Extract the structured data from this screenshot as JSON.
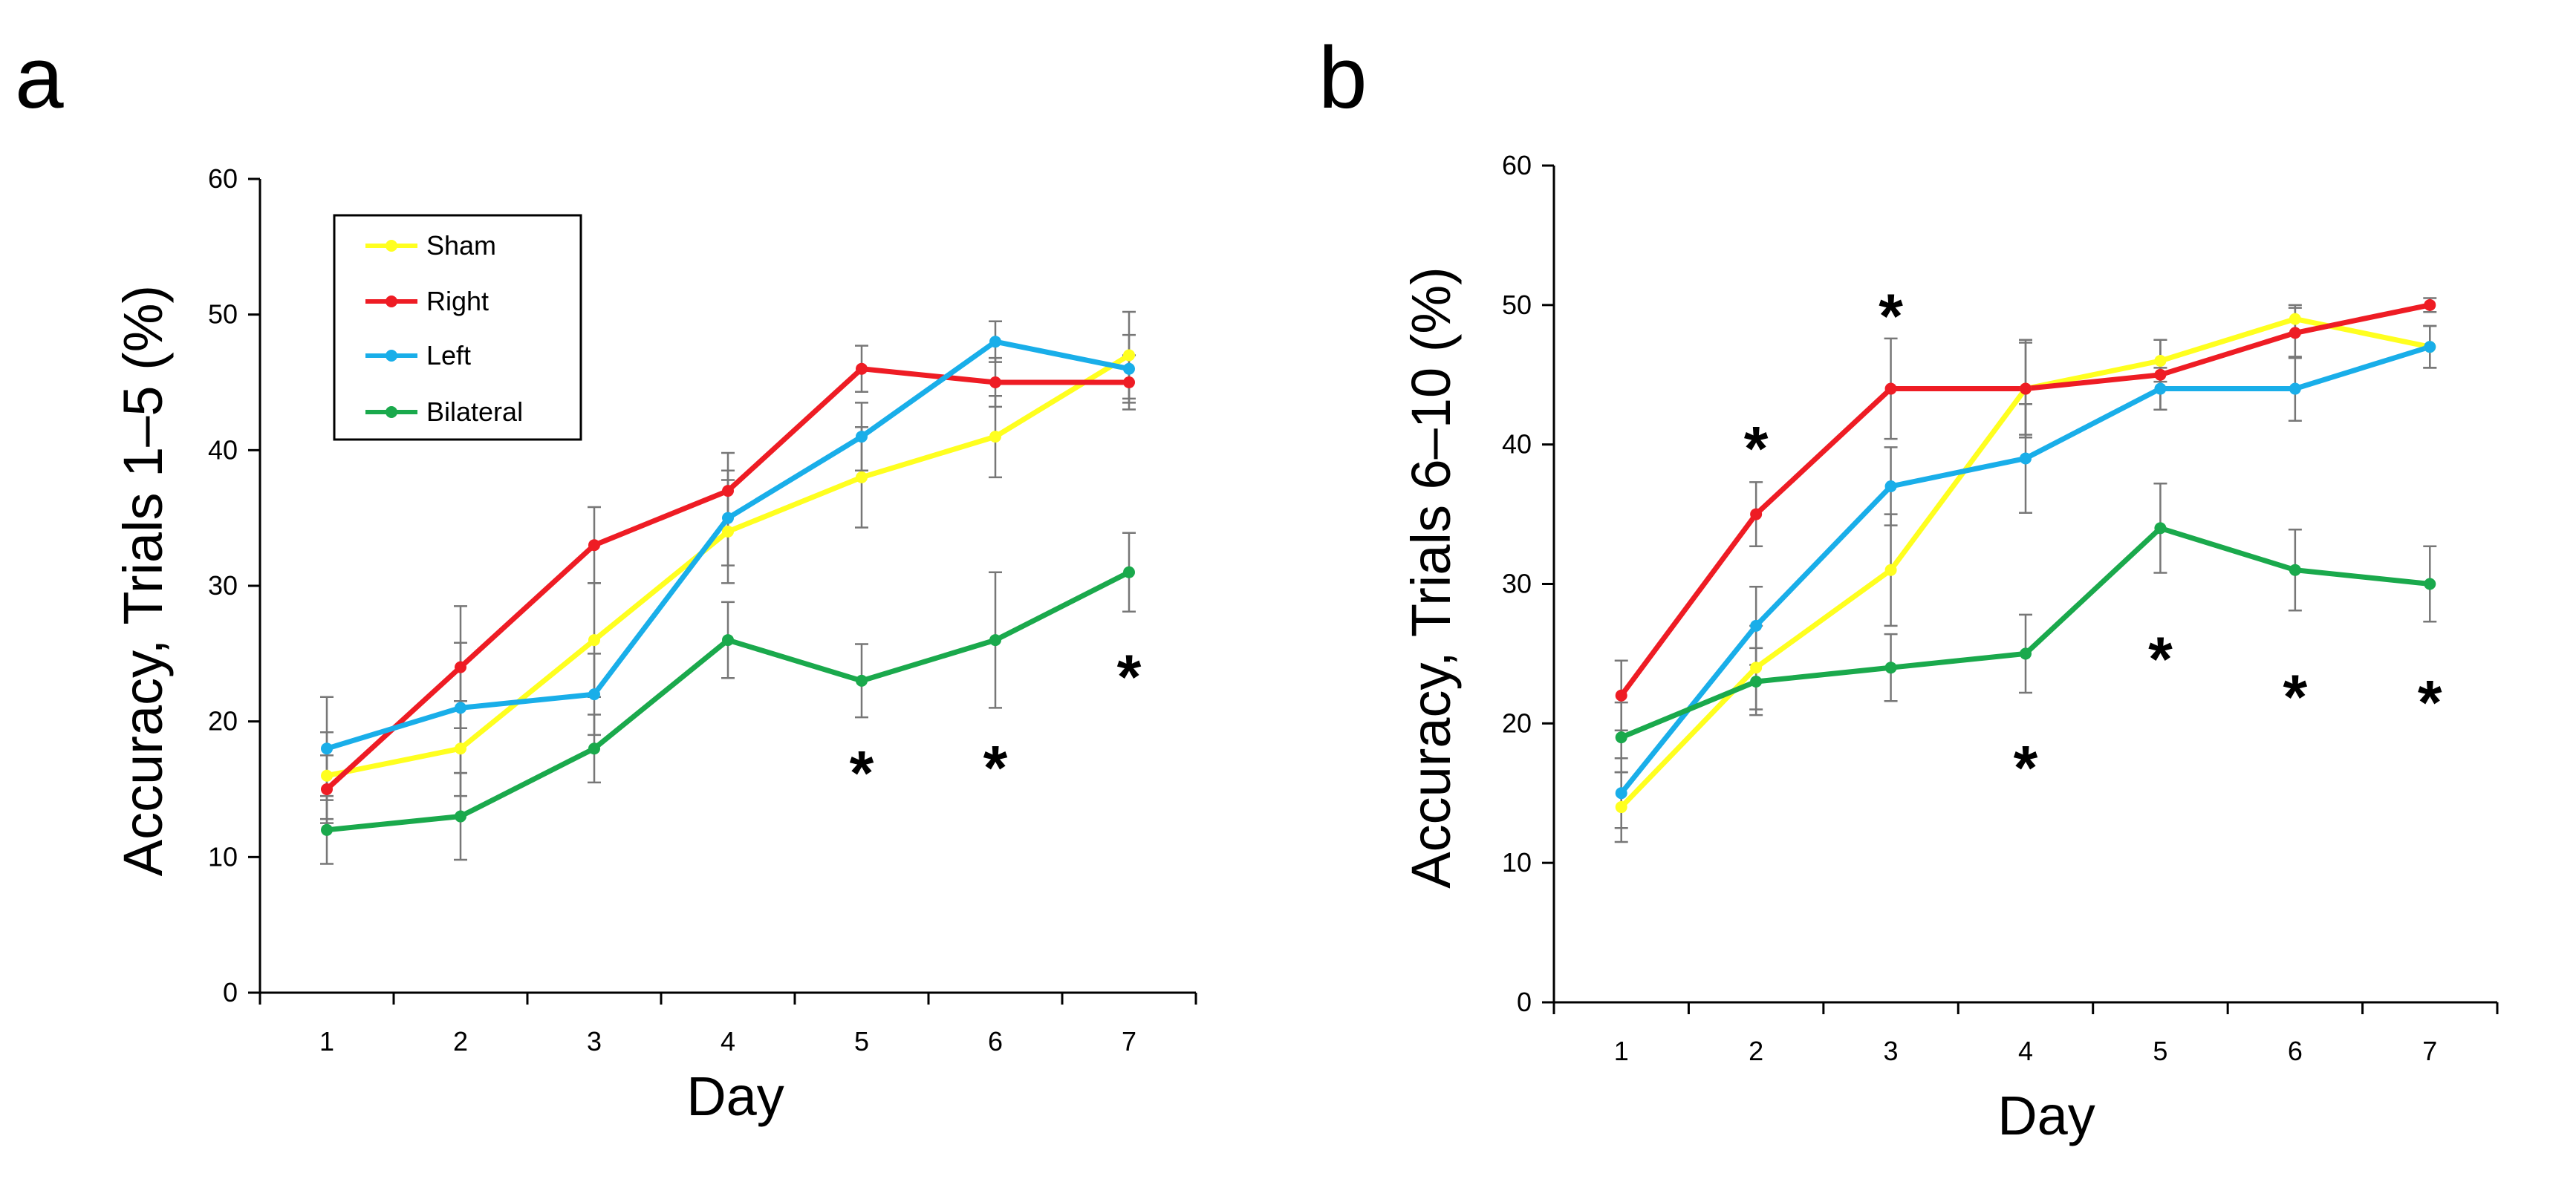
{
  "legend": {
    "items": [
      {
        "label": "Sham",
        "color": "#ffff1f"
      },
      {
        "label": "Right",
        "color": "#ee1c24"
      },
      {
        "label": "Left",
        "color": "#19aee9"
      },
      {
        "label": "Bilateral",
        "color": "#1aa94c"
      }
    ]
  },
  "chart_data": [
    {
      "panel": "a",
      "type": "line",
      "xlabel": "Day",
      "ylabel": "Accuracy, Trials 1–5 (%)",
      "categories": [
        "1",
        "2",
        "3",
        "4",
        "5",
        "6",
        "7"
      ],
      "ylim": [
        0,
        60
      ],
      "yticks": [
        "0",
        "10",
        "20",
        "30",
        "40",
        "50",
        "60"
      ],
      "grid": false,
      "legend_position": "top-left",
      "series": [
        {
          "name": "Sham",
          "color": "#ffff1f",
          "values": [
            16,
            18,
            26,
            34,
            38,
            41,
            47
          ],
          "errors": [
            3.2,
            3.5,
            4.2,
            3.8,
            3.7,
            3.0,
            3.2
          ]
        },
        {
          "name": "Right",
          "color": "#ee1c24",
          "values": [
            15,
            24,
            33,
            37,
            46,
            45,
            45
          ],
          "errors": [
            2.5,
            4.5,
            2.8,
            2.8,
            1.7,
            1.8,
            2.0
          ]
        },
        {
          "name": "Left",
          "color": "#19aee9",
          "values": [
            18,
            21,
            22,
            35,
            41,
            48,
            46
          ],
          "errors": [
            3.8,
            4.8,
            3.0,
            3.5,
            2.5,
            1.5,
            2.5
          ]
        },
        {
          "name": "Bilateral",
          "color": "#1aa94c",
          "values": [
            12,
            13,
            18,
            26,
            23,
            26,
            31
          ],
          "errors": [
            2.5,
            3.2,
            2.5,
            2.8,
            2.7,
            5.0,
            2.9
          ]
        }
      ],
      "annotations": [
        {
          "text": "*",
          "day": 5,
          "y": 16.8
        },
        {
          "text": "*",
          "day": 6,
          "y": 17.2
        },
        {
          "text": "*",
          "day": 7,
          "y": 23.9
        }
      ]
    },
    {
      "panel": "b",
      "type": "line",
      "xlabel": "Day",
      "ylabel": "Accuracy, Trials 6–10 (%)",
      "categories": [
        "1",
        "2",
        "3",
        "4",
        "5",
        "6",
        "7"
      ],
      "ylim": [
        0,
        60
      ],
      "yticks": [
        "0",
        "10",
        "20",
        "30",
        "40",
        "50",
        "60"
      ],
      "grid": false,
      "series": [
        {
          "name": "Sham",
          "color": "#ffff1f",
          "values": [
            14,
            24,
            31,
            44,
            46,
            49,
            47
          ],
          "errors": [
            2.5,
            3.0,
            4.0,
            3.5,
            1.5,
            1.0,
            1.5
          ]
        },
        {
          "name": "Right",
          "color": "#ee1c24",
          "values": [
            22,
            35,
            44,
            44,
            45,
            48,
            50
          ],
          "errors": [
            2.5,
            2.3,
            3.6,
            3.3,
            2.5,
            1.8,
            0.5
          ]
        },
        {
          "name": "Left",
          "color": "#19aee9",
          "values": [
            15,
            27,
            37,
            39,
            44,
            44,
            47
          ],
          "errors": [
            2.5,
            2.8,
            2.8,
            3.9,
            1.5,
            2.3,
            1.5
          ]
        },
        {
          "name": "Bilateral",
          "color": "#1aa94c",
          "values": [
            19,
            23,
            24,
            25,
            34,
            31,
            30
          ],
          "errors": [
            2.5,
            2.4,
            2.4,
            2.8,
            3.2,
            2.9,
            2.7
          ]
        }
      ],
      "annotations": [
        {
          "text": "*",
          "day": 2,
          "y": 40.3
        },
        {
          "text": "*",
          "day": 3,
          "y": 49.8
        },
        {
          "text": "*",
          "day": 4,
          "y": 17.4
        },
        {
          "text": "*",
          "day": 5,
          "y": 25.2
        },
        {
          "text": "*",
          "day": 6,
          "y": 22.5
        },
        {
          "text": "*",
          "day": 7,
          "y": 22.1
        }
      ]
    }
  ]
}
